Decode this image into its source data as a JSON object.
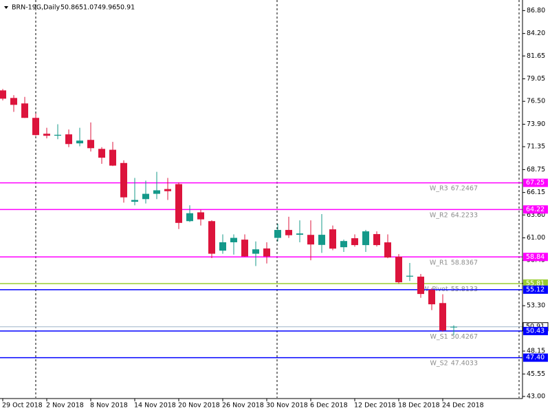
{
  "chart_data": {
    "type": "candlestick",
    "title": "BRN-19G,Daily",
    "categories": [
      "29 Oct 2018",
      null,
      null,
      null,
      "2 Nov 2018",
      null,
      null,
      null,
      "8 Nov 2018",
      null,
      null,
      null,
      "14 Nov 2018",
      null,
      null,
      null,
      "20 Nov 2018",
      null,
      null,
      null,
      "26 Nov 2018",
      null,
      null,
      null,
      "30 Nov 2018",
      null,
      null,
      null,
      "6 Dec 2018",
      null,
      null,
      null,
      "12 Dec 2018",
      null,
      null,
      null,
      "18 Dec 2018",
      null,
      null,
      null,
      "24 Dec 2018",
      null
    ],
    "open": [
      77.74,
      76.88,
      76.26,
      74.62,
      72.82,
      72.6,
      72.75,
      71.73,
      72.12,
      71.1,
      71.0,
      69.5,
      65.1,
      65.4,
      66.0,
      66.54,
      67.1,
      62.9,
      63.9,
      62.9,
      59.55,
      60.5,
      60.8,
      59.2,
      59.8,
      61.0,
      61.9,
      61.35,
      61.34,
      60.2,
      61.97,
      59.94,
      60.96,
      60.18,
      61.43,
      60.49,
      58.85,
      56.6,
      56.6,
      55.1,
      53.6,
      50.86
    ],
    "high": [
      77.9,
      77.2,
      77.0,
      75.1,
      73.5,
      73.9,
      73.3,
      73.5,
      74.1,
      71.3,
      71.9,
      69.8,
      67.8,
      67.5,
      68.5,
      67.8,
      67.3,
      64.7,
      64.2,
      63.0,
      61.4,
      61.4,
      61.4,
      60.6,
      60.5,
      62.6,
      63.4,
      62.99,
      62.99,
      63.7,
      62.4,
      60.8,
      61.4,
      61.9,
      61.74,
      61.4,
      59.16,
      58.15,
      56.9,
      55.3,
      54.6,
      51.07
    ],
    "low": [
      76.6,
      75.3,
      74.6,
      72.6,
      72.3,
      72.2,
      71.3,
      71.4,
      70.8,
      69.4,
      69.15,
      65.0,
      64.7,
      64.9,
      65.4,
      65.3,
      62.0,
      62.8,
      62.4,
      58.7,
      59.2,
      59.1,
      58.85,
      57.8,
      58.1,
      60.6,
      61.0,
      60.5,
      58.46,
      59.3,
      59.6,
      59.4,
      60.0,
      59.4,
      60.02,
      58.69,
      55.8,
      56.1,
      54.2,
      52.8,
      50.34,
      49.96
    ],
    "close": [
      76.8,
      76.1,
      74.62,
      72.67,
      72.59,
      72.7,
      71.65,
      72.04,
      71.18,
      70.1,
      69.2,
      65.6,
      65.3,
      66.0,
      66.4,
      66.3,
      62.7,
      63.8,
      63.1,
      59.2,
      60.5,
      61.0,
      58.9,
      59.7,
      58.9,
      61.9,
      61.3,
      61.5,
      60.25,
      61.35,
      59.78,
      60.64,
      60.18,
      61.74,
      60.18,
      58.77,
      55.96,
      56.7,
      54.63,
      53.46,
      50.5,
      50.91
    ],
    "up_color": "#14998a",
    "down_color": "#dc143c",
    "ylim": [
      42.84,
      88.0
    ],
    "yticks": [
      {
        "value": 86.8,
        "label": "86.80"
      },
      {
        "value": 84.2,
        "label": "84.20"
      },
      {
        "value": 81.65,
        "label": "81.65"
      },
      {
        "value": 79.05,
        "label": "79.05"
      },
      {
        "value": 76.5,
        "label": "76.50"
      },
      {
        "value": 73.9,
        "label": "73.90"
      },
      {
        "value": 71.35,
        "label": "71.35"
      },
      {
        "value": 68.75,
        "label": "68.75"
      },
      {
        "value": 66.15,
        "label": "66.15"
      },
      {
        "value": 63.6,
        "label": "63.60"
      },
      {
        "value": 61.0,
        "label": "61.00"
      },
      {
        "value": 58.45,
        "label": "58.45"
      },
      {
        "value": 55.85,
        "label": "55.85"
      },
      {
        "value": 53.3,
        "label": "53.30"
      },
      {
        "value": 50.7,
        "label": "50.70"
      },
      {
        "value": 48.15,
        "label": "48.15"
      },
      {
        "value": 45.55,
        "label": "45.55"
      },
      {
        "value": 43.0,
        "label": "43.00"
      }
    ],
    "levels": [
      {
        "name": "W_R3",
        "value": 67.2467,
        "tag": "67.25",
        "color": "#ff00ff"
      },
      {
        "name": "W_R2",
        "value": 64.2233,
        "tag": "64.22",
        "color": "#ff00ff"
      },
      {
        "name": "W_R1",
        "value": 58.8367,
        "tag": "58.84",
        "color": "#ff00ff"
      },
      {
        "name": "W_Pivot",
        "value": 55.8133,
        "tag": "55.81",
        "color": "#9acd32"
      },
      {
        "value": 55.12,
        "tag": "55.12",
        "color": "#0000ff"
      },
      {
        "name": "W_S1",
        "value": 50.4267,
        "tag": "50.43",
        "color": "#0000ff"
      },
      {
        "name": "W_S2",
        "value": 47.4033,
        "tag": "47.40",
        "color": "#0000ff"
      }
    ]
  }
}
